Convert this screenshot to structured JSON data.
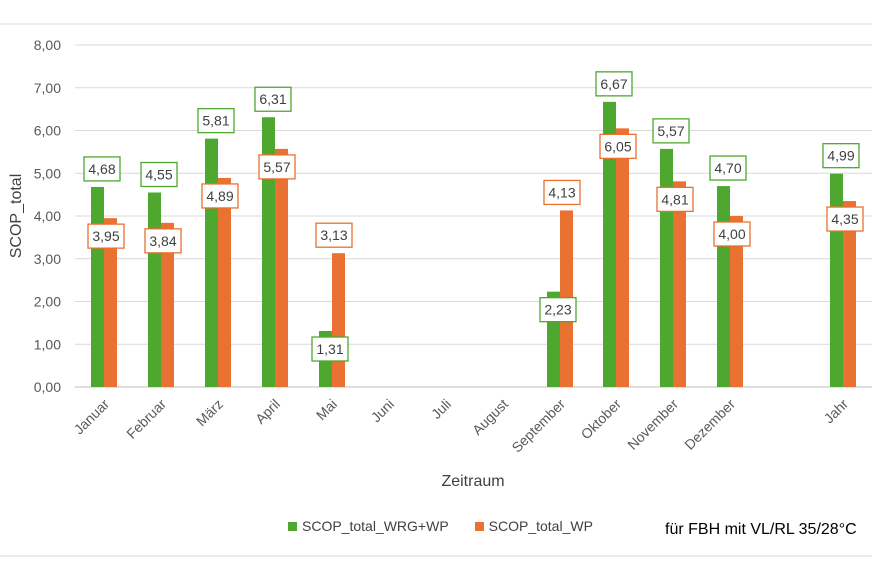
{
  "chart_data": {
    "type": "bar",
    "title": "",
    "xlabel": "Zeitraum",
    "ylabel": "SCOP_total",
    "ylim": [
      0,
      8
    ],
    "yticks": [
      "0,00",
      "1,00",
      "2,00",
      "3,00",
      "4,00",
      "5,00",
      "6,00",
      "7,00",
      "8,00"
    ],
    "grid": true,
    "categories": [
      "Januar",
      "Februar",
      "März",
      "April",
      "Mai",
      "Juni",
      "Juli",
      "August",
      "September",
      "Oktober",
      "November",
      "Dezember",
      "Jahr"
    ],
    "series": [
      {
        "name": "SCOP_total_WRG+WP",
        "color": "#4ea72e",
        "values": [
          4.68,
          4.55,
          5.81,
          6.31,
          1.31,
          null,
          null,
          null,
          2.23,
          6.67,
          5.57,
          4.7,
          4.99
        ],
        "labels": [
          "4,68",
          "4,55",
          "5,81",
          "6,31",
          "1,31",
          null,
          null,
          null,
          "2,23",
          "6,67",
          "5,57",
          "4,70",
          "4,99"
        ]
      },
      {
        "name": "SCOP_total_WP",
        "color": "#e97132",
        "values": [
          3.95,
          3.84,
          4.89,
          5.57,
          3.13,
          null,
          null,
          null,
          4.13,
          6.05,
          4.81,
          4.0,
          4.35
        ],
        "labels": [
          "3,95",
          "3,84",
          "4,89",
          "5,57",
          "3,13",
          null,
          null,
          null,
          "4,13",
          "6,05",
          "4,81",
          "4,00",
          "4,35"
        ]
      }
    ],
    "legend_position": "bottom"
  },
  "note": "für FBH mit VL/RL 35/28°C"
}
